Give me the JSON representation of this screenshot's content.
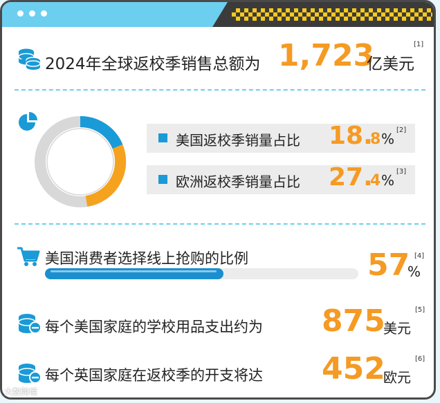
{
  "colors": {
    "accent_orange": "#f59a23",
    "accent_blue": "#1a9ad6",
    "header": "#6ccff0"
  },
  "total": {
    "prefix": "2024年全球返校季销售总额为",
    "value": "1,723",
    "unit": "亿美元",
    "ref": "[1]"
  },
  "usa_share": {
    "label": "美国返校季销量占比",
    "num_int": "18.",
    "num_dec": "8",
    "pct": "%",
    "ref": "[2]",
    "value": 18.8
  },
  "europe_share": {
    "label": "欧洲返校季销量占比",
    "num_int": "27.",
    "num_dec": "4",
    "pct": "%",
    "ref": "[3]",
    "value": 27.4
  },
  "online": {
    "label": "美国消费者选择线上抢购的比例",
    "value": "57",
    "pct": "%",
    "ref": "[4]",
    "fraction": 0.57
  },
  "us_household": {
    "label": "每个美国家庭的学校用品支出约为",
    "value": "875",
    "unit": "美元",
    "ref": "[5]"
  },
  "uk_household": {
    "label": "每个英国家庭在返校季的开支将达",
    "value": "452",
    "unit": "欧元",
    "ref": "[6]"
  },
  "icons": [
    "coins-icon",
    "pie-chart-icon",
    "shopping-cart-icon",
    "coin-minus-icon"
  ],
  "watermark": "大数跨境"
}
